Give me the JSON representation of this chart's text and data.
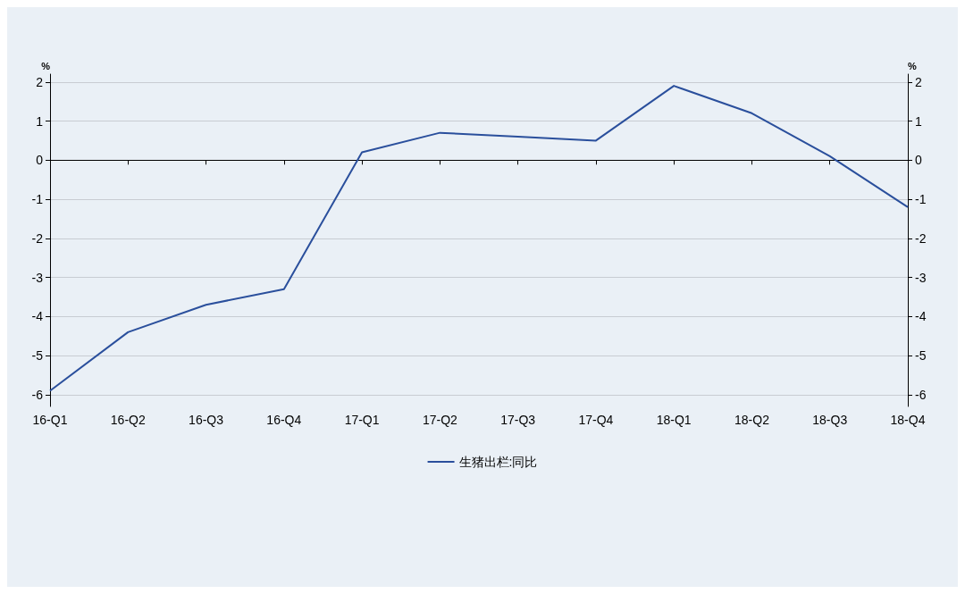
{
  "chart_data": {
    "type": "line",
    "ylabel": "%",
    "y2label": "%",
    "categories": [
      "16-Q1",
      "16-Q2",
      "16-Q3",
      "16-Q4",
      "17-Q1",
      "17-Q2",
      "17-Q3",
      "17-Q4",
      "18-Q1",
      "18-Q2",
      "18-Q3",
      "18-Q4"
    ],
    "series": [
      {
        "name": "生猪出栏:同比",
        "color": "#2a4f9c",
        "values": [
          -5.9,
          -4.4,
          -3.7,
          -3.3,
          0.2,
          0.7,
          0.6,
          0.5,
          1.9,
          1.2,
          0.1,
          -1.2
        ]
      }
    ],
    "ylim": [
      -6.3,
      2.2
    ],
    "yticks": [
      -6,
      -5,
      -4,
      -3,
      -2,
      -1,
      0,
      1,
      2
    ],
    "y2lim": [
      -6.3,
      2.2
    ],
    "y2ticks": [
      -6,
      -5,
      -4,
      -3,
      -2,
      -1,
      0,
      1,
      2
    ],
    "grid": "y",
    "legend": "bottom",
    "marker": "none",
    "line_style": "solid"
  }
}
